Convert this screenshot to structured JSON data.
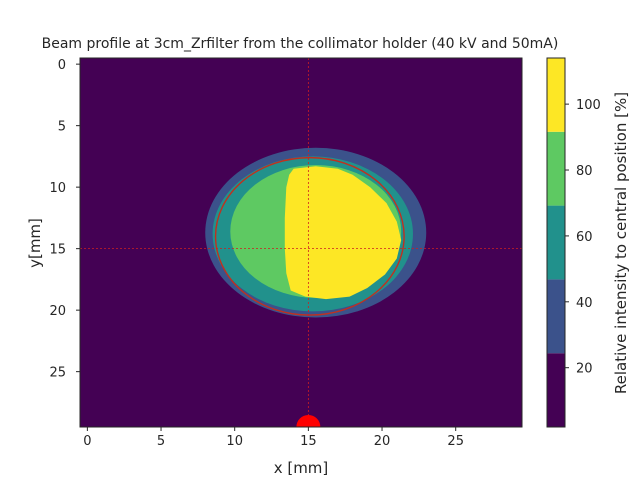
{
  "chart_data": {
    "type": "heatmap",
    "title": "Beam profile at 3cm_Zrfilter from the collimator holder (40 kV and 50mA)",
    "xlabel": "x [mm]",
    "ylabel": "y[mm]",
    "xlim": [
      -0.5,
      29.5
    ],
    "ylim": [
      29.5,
      -0.5
    ],
    "x_ticks": [
      0,
      5,
      10,
      15,
      20,
      25
    ],
    "y_ticks": [
      0,
      5,
      10,
      15,
      20,
      25
    ],
    "colorbar": {
      "label": "Relative intensity to central position [%]",
      "range": [
        2,
        114
      ],
      "ticks": [
        20,
        40,
        60,
        80,
        100
      ],
      "levels": [
        2,
        24.4,
        46.8,
        69.2,
        91.6,
        114
      ],
      "colors": [
        "#440154",
        "#3b528b",
        "#21918c",
        "#5ec962",
        "#fde725"
      ]
    },
    "contour_regions": [
      {
        "level": "24-47%",
        "color": "#3b528b",
        "center": [
          15.5,
          13.7
        ],
        "semi_axes": [
          7.5,
          6.9
        ]
      },
      {
        "level": "47-69%",
        "color": "#21918c",
        "center": [
          15.3,
          13.8
        ],
        "semi_axes": [
          6.8,
          6.3
        ]
      },
      {
        "level": "69-92%",
        "color": "#5ec962",
        "center": [
          15.5,
          13.6
        ],
        "semi_axes": [
          5.8,
          5.4
        ]
      },
      {
        "level": "92-114%",
        "color": "#fde725",
        "region": "x 13.5-21.3 mm, y 8.4-19.1 mm"
      }
    ],
    "fit_ellipse": {
      "color": "#c03020",
      "center": [
        15.1,
        14.0
      ],
      "semi_axes": [
        6.4,
        6.4
      ]
    },
    "crosshair": {
      "color": "#cc2020",
      "x": 15,
      "y": 15
    },
    "marker": {
      "color": "#ff0000",
      "x": 15,
      "y": 29.5
    }
  }
}
